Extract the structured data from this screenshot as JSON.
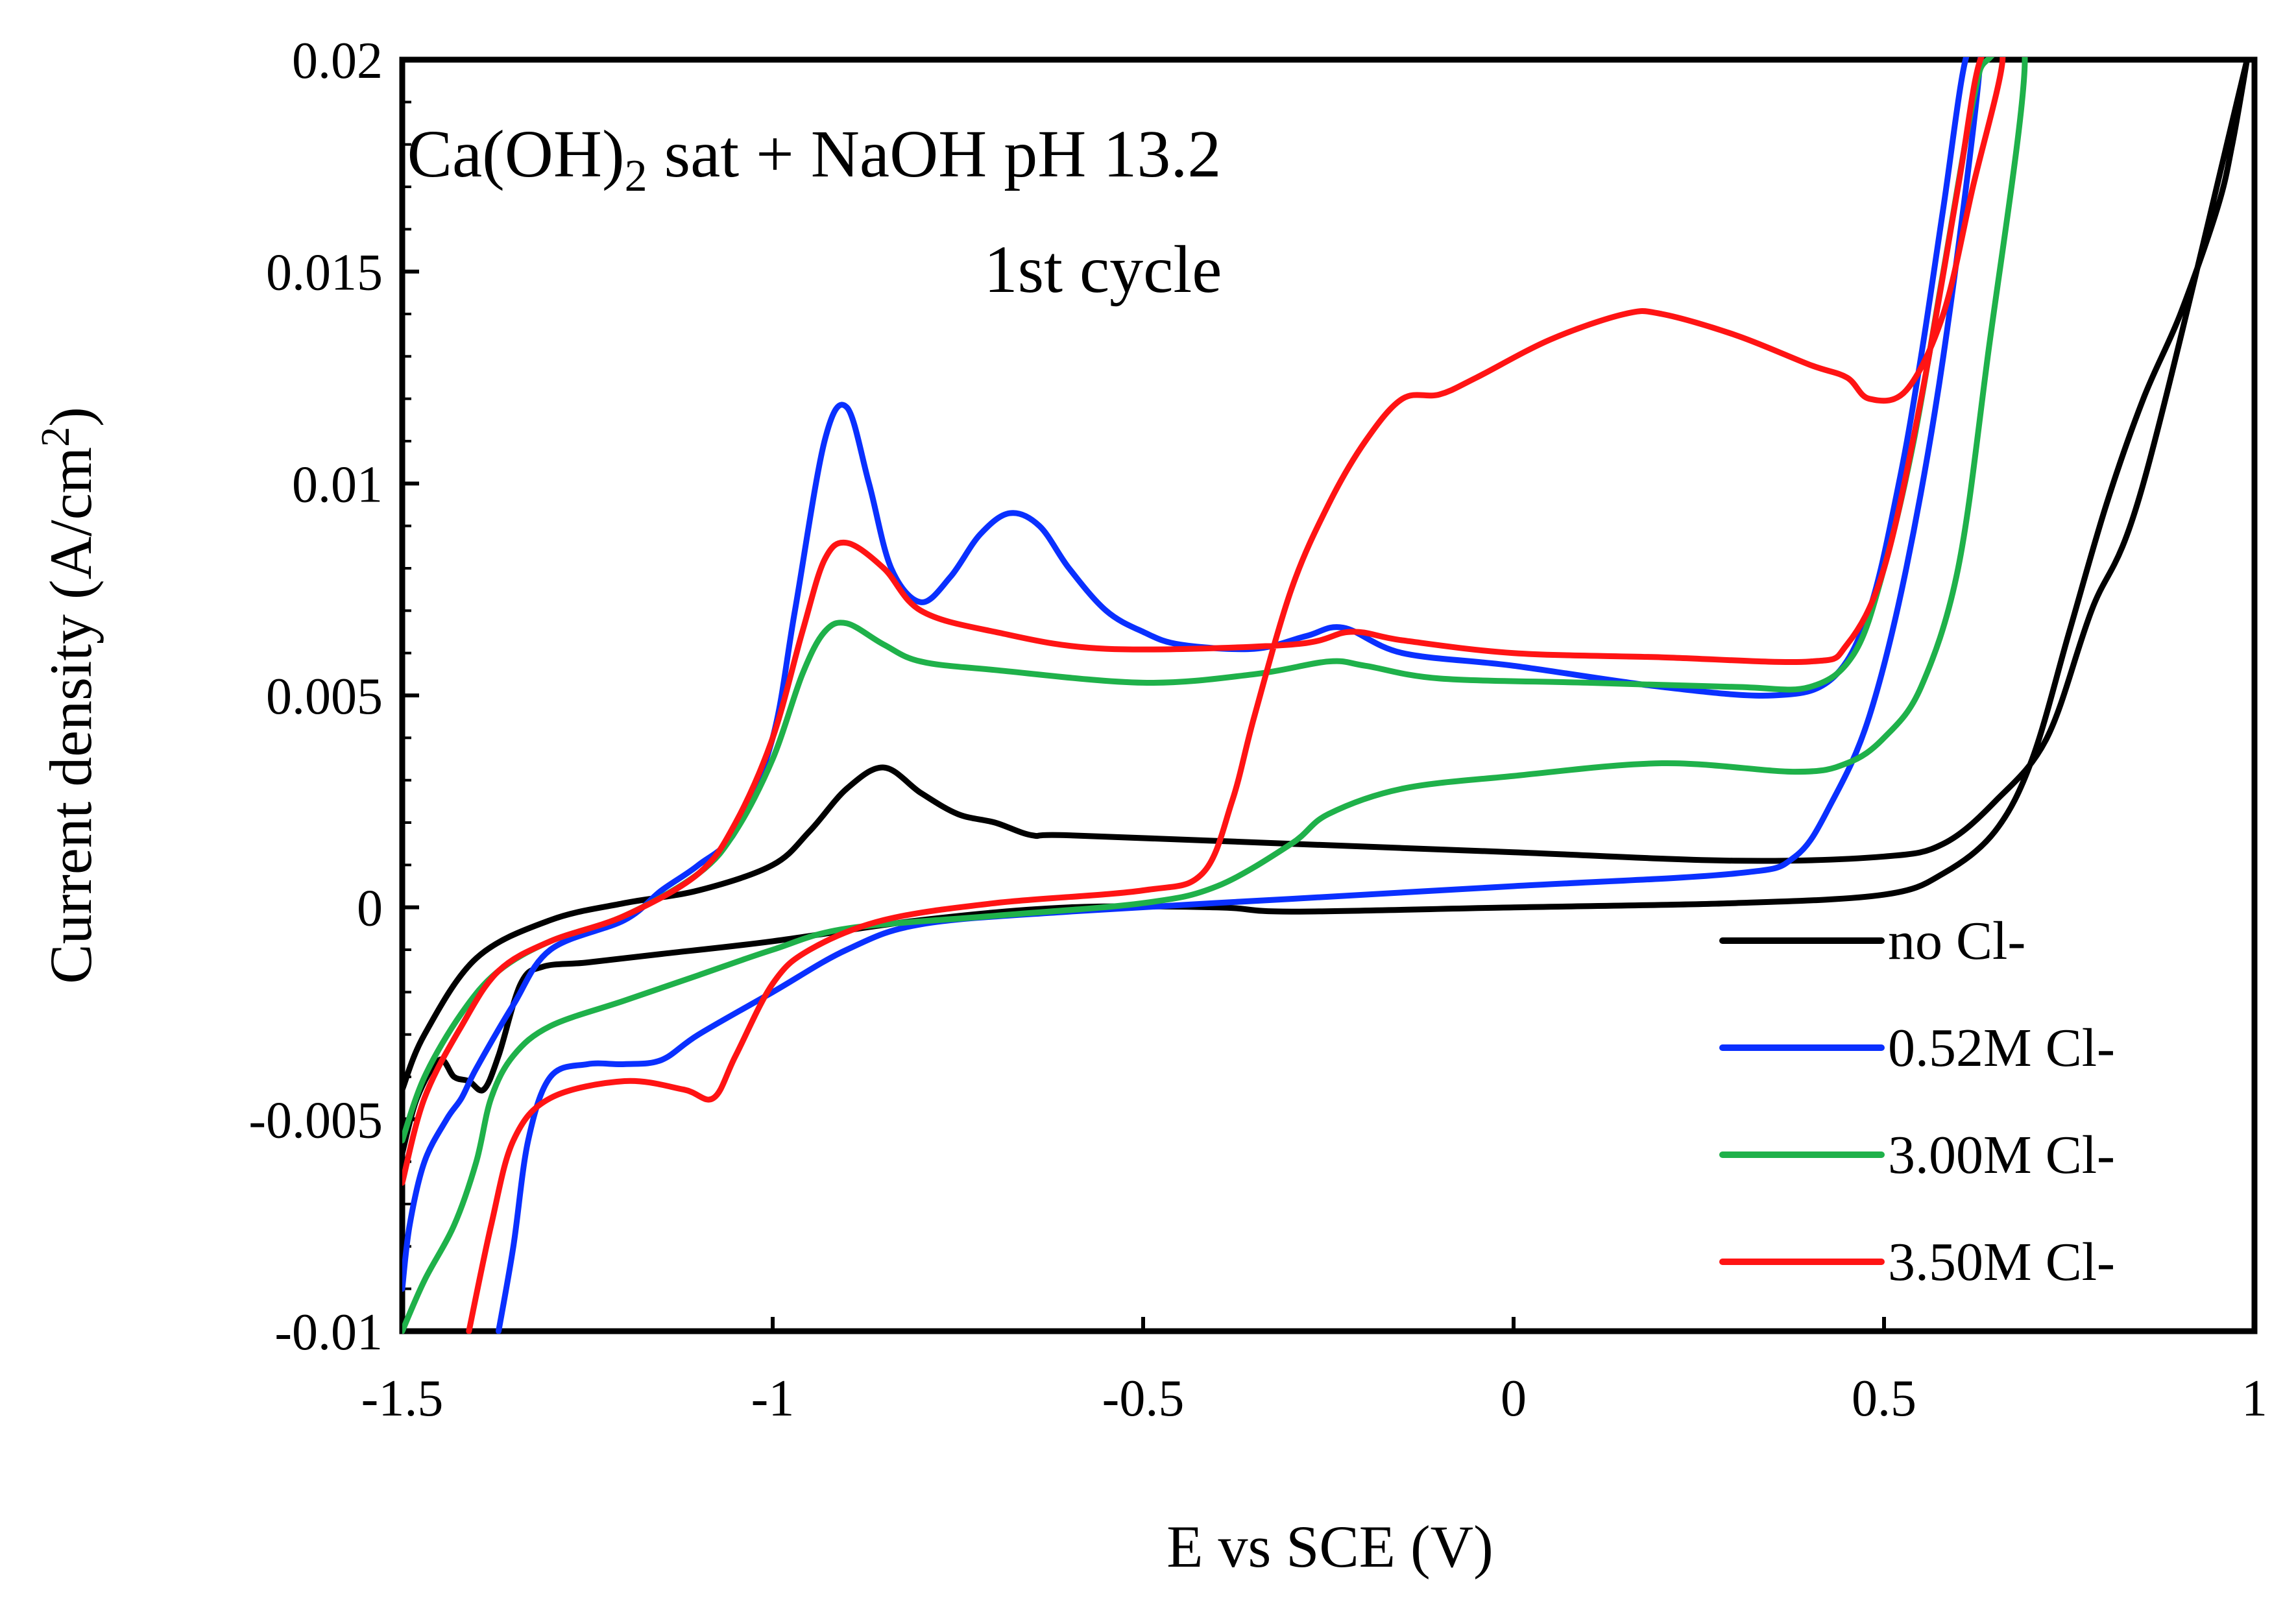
{
  "chart_data": {
    "type": "line",
    "title": {
      "line1_main": "Ca(OH)",
      "line1_sub": "2",
      "line1_rest": " sat + NaOH pH 13.2",
      "line2": "1st cycle"
    },
    "xlabel": "E vs SCE (V)",
    "ylabel": {
      "main": "Current density (A/cm",
      "sup": "2",
      "end": ")"
    },
    "xlim": [
      -1.5,
      1.0
    ],
    "ylim": [
      -0.01,
      0.02
    ],
    "x_ticks": [
      -1.5,
      -1.0,
      -0.5,
      0.0,
      0.5,
      1.0
    ],
    "x_tick_labels": [
      "-1.5",
      "-1",
      "-0.5",
      "0",
      "0.5",
      "1"
    ],
    "y_ticks": [
      -0.01,
      -0.005,
      0.0,
      0.005,
      0.01,
      0.015,
      0.02
    ],
    "y_tick_labels": [
      "-0.01",
      "-0.005",
      "0",
      "0.005",
      "0.01",
      "0.015",
      "0.02"
    ],
    "legend_position": "bottom-right",
    "series": [
      {
        "name": "no Cl-",
        "color": "#000000",
        "points": [
          [
            -1.5,
            -0.0058
          ],
          [
            -1.48,
            -0.0045
          ],
          [
            -1.45,
            -0.0036
          ],
          [
            -1.43,
            -0.004
          ],
          [
            -1.41,
            -0.0041
          ],
          [
            -1.39,
            -0.0043
          ],
          [
            -1.37,
            -0.0035
          ],
          [
            -1.34,
            -0.0018
          ],
          [
            -1.31,
            -0.0014
          ],
          [
            -1.25,
            -0.0013
          ],
          [
            -1.15,
            -0.0011
          ],
          [
            -1.0,
            -0.0008
          ],
          [
            -0.8,
            -0.0003
          ],
          [
            -0.6,
            0.0
          ],
          [
            -0.4,
            0.0
          ],
          [
            -0.3,
            -0.0001
          ],
          [
            0.0,
            0.0
          ],
          [
            0.3,
            0.0001
          ],
          [
            0.5,
            0.0003
          ],
          [
            0.58,
            0.0008
          ],
          [
            0.65,
            0.0018
          ],
          [
            0.7,
            0.0035
          ],
          [
            0.75,
            0.0065
          ],
          [
            0.8,
            0.0095
          ],
          [
            0.85,
            0.012
          ],
          [
            0.9,
            0.014
          ],
          [
            0.95,
            0.0165
          ],
          [
            0.97,
            0.018
          ],
          [
            0.99,
            0.02
          ],
          [
            0.99,
            0.02
          ],
          [
            0.85,
            0.01
          ],
          [
            0.78,
            0.007
          ],
          [
            0.72,
            0.004
          ],
          [
            0.65,
            0.0025
          ],
          [
            0.58,
            0.0015
          ],
          [
            0.5,
            0.0012
          ],
          [
            0.3,
            0.0011
          ],
          [
            0.0,
            0.0013
          ],
          [
            -0.3,
            0.0015
          ],
          [
            -0.6,
            0.0017
          ],
          [
            -0.65,
            0.0017
          ],
          [
            -0.7,
            0.002
          ],
          [
            -0.75,
            0.0022
          ],
          [
            -0.8,
            0.0027
          ],
          [
            -0.85,
            0.0033
          ],
          [
            -0.9,
            0.0028
          ],
          [
            -0.95,
            0.0018
          ],
          [
            -1.0,
            0.001
          ],
          [
            -1.1,
            0.0004
          ],
          [
            -1.2,
            0.0001
          ],
          [
            -1.3,
            -0.0003
          ],
          [
            -1.4,
            -0.0012
          ],
          [
            -1.47,
            -0.003
          ],
          [
            -1.5,
            -0.0043
          ]
        ]
      },
      {
        "name": "0.52M Cl-",
        "color": "#0a30ff",
        "points": [
          [
            -1.5,
            -0.009
          ],
          [
            -1.49,
            -0.0075
          ],
          [
            -1.47,
            -0.006
          ],
          [
            -1.44,
            -0.005
          ],
          [
            -1.42,
            -0.0045
          ],
          [
            -1.4,
            -0.0038
          ],
          [
            -1.35,
            -0.0023
          ],
          [
            -1.3,
            -0.001
          ],
          [
            -1.2,
            -0.0003
          ],
          [
            -1.15,
            0.0004
          ],
          [
            -1.1,
            0.001
          ],
          [
            -1.05,
            0.0018
          ],
          [
            -1.0,
            0.004
          ],
          [
            -0.97,
            0.007
          ],
          [
            -0.93,
            0.011
          ],
          [
            -0.9,
            0.0118
          ],
          [
            -0.87,
            0.01
          ],
          [
            -0.84,
            0.008
          ],
          [
            -0.8,
            0.0072
          ],
          [
            -0.76,
            0.0078
          ],
          [
            -0.72,
            0.0088
          ],
          [
            -0.68,
            0.0093
          ],
          [
            -0.64,
            0.009
          ],
          [
            -0.6,
            0.008
          ],
          [
            -0.55,
            0.007
          ],
          [
            -0.5,
            0.0065
          ],
          [
            -0.45,
            0.0062
          ],
          [
            -0.35,
            0.0061
          ],
          [
            -0.28,
            0.0064
          ],
          [
            -0.23,
            0.0066
          ],
          [
            -0.15,
            0.006
          ],
          [
            0.0,
            0.0057
          ],
          [
            0.2,
            0.0052
          ],
          [
            0.35,
            0.005
          ],
          [
            0.43,
            0.0054
          ],
          [
            0.48,
            0.007
          ],
          [
            0.52,
            0.01
          ],
          [
            0.55,
            0.013
          ],
          [
            0.58,
            0.0165
          ],
          [
            0.61,
            0.02
          ],
          [
            0.63,
            0.02
          ],
          [
            0.58,
            0.013
          ],
          [
            0.53,
            0.008
          ],
          [
            0.48,
            0.0045
          ],
          [
            0.43,
            0.0025
          ],
          [
            0.38,
            0.0012
          ],
          [
            0.3,
            0.0008
          ],
          [
            0.0,
            0.0005
          ],
          [
            -0.3,
            0.0002
          ],
          [
            -0.6,
            -0.0001
          ],
          [
            -0.8,
            -0.0004
          ],
          [
            -0.9,
            -0.001
          ],
          [
            -1.0,
            -0.002
          ],
          [
            -1.1,
            -0.003
          ],
          [
            -1.15,
            -0.0036
          ],
          [
            -1.2,
            -0.0037
          ],
          [
            -1.25,
            -0.0037
          ],
          [
            -1.3,
            -0.004
          ],
          [
            -1.33,
            -0.0055
          ],
          [
            -1.35,
            -0.008
          ],
          [
            -1.37,
            -0.01
          ]
        ]
      },
      {
        "name": "3.00M Cl-",
        "color": "#1fb14a",
        "points": [
          [
            -1.5,
            -0.0055
          ],
          [
            -1.47,
            -0.004
          ],
          [
            -1.42,
            -0.0025
          ],
          [
            -1.37,
            -0.0015
          ],
          [
            -1.3,
            -0.0008
          ],
          [
            -1.2,
            -0.0002
          ],
          [
            -1.1,
            0.0008
          ],
          [
            -1.05,
            0.0018
          ],
          [
            -1.0,
            0.0035
          ],
          [
            -0.96,
            0.0055
          ],
          [
            -0.93,
            0.0065
          ],
          [
            -0.9,
            0.0067
          ],
          [
            -0.85,
            0.0062
          ],
          [
            -0.8,
            0.0058
          ],
          [
            -0.7,
            0.0056
          ],
          [
            -0.5,
            0.0053
          ],
          [
            -0.35,
            0.0055
          ],
          [
            -0.25,
            0.0058
          ],
          [
            -0.2,
            0.0057
          ],
          [
            -0.1,
            0.0054
          ],
          [
            0.1,
            0.0053
          ],
          [
            0.3,
            0.0052
          ],
          [
            0.4,
            0.0052
          ],
          [
            0.46,
            0.006
          ],
          [
            0.5,
            0.008
          ],
          [
            0.54,
            0.011
          ],
          [
            0.58,
            0.015
          ],
          [
            0.62,
            0.019
          ],
          [
            0.64,
            0.02
          ],
          [
            0.69,
            0.02
          ],
          [
            0.64,
            0.013
          ],
          [
            0.6,
            0.008
          ],
          [
            0.55,
            0.0052
          ],
          [
            0.5,
            0.004
          ],
          [
            0.45,
            0.0034
          ],
          [
            0.38,
            0.0032
          ],
          [
            0.2,
            0.0034
          ],
          [
            0.0,
            0.0031
          ],
          [
            -0.15,
            0.0028
          ],
          [
            -0.25,
            0.0022
          ],
          [
            -0.3,
            0.0015
          ],
          [
            -0.4,
            0.0005
          ],
          [
            -0.5,
            0.0001
          ],
          [
            -0.7,
            -0.0002
          ],
          [
            -0.9,
            -0.0005
          ],
          [
            -1.0,
            -0.001
          ],
          [
            -1.1,
            -0.0016
          ],
          [
            -1.2,
            -0.0022
          ],
          [
            -1.3,
            -0.0028
          ],
          [
            -1.35,
            -0.0035
          ],
          [
            -1.38,
            -0.0045
          ],
          [
            -1.4,
            -0.006
          ],
          [
            -1.43,
            -0.0075
          ],
          [
            -1.47,
            -0.0088
          ],
          [
            -1.5,
            -0.01
          ]
        ]
      },
      {
        "name": "3.50M Cl-",
        "color": "#ff1414",
        "points": [
          [
            -1.5,
            -0.0065
          ],
          [
            -1.47,
            -0.0045
          ],
          [
            -1.42,
            -0.0028
          ],
          [
            -1.37,
            -0.0015
          ],
          [
            -1.3,
            -0.0008
          ],
          [
            -1.2,
            -0.0002
          ],
          [
            -1.1,
            0.0008
          ],
          [
            -1.05,
            0.002
          ],
          [
            -1.0,
            0.004
          ],
          [
            -0.96,
            0.0065
          ],
          [
            -0.93,
            0.0082
          ],
          [
            -0.9,
            0.0086
          ],
          [
            -0.85,
            0.008
          ],
          [
            -0.8,
            0.007
          ],
          [
            -0.7,
            0.0065
          ],
          [
            -0.55,
            0.0061
          ],
          [
            -0.3,
            0.0062
          ],
          [
            -0.22,
            0.0065
          ],
          [
            -0.15,
            0.0063
          ],
          [
            0.0,
            0.006
          ],
          [
            0.2,
            0.0059
          ],
          [
            0.4,
            0.0058
          ],
          [
            0.45,
            0.0062
          ],
          [
            0.5,
            0.008
          ],
          [
            0.55,
            0.012
          ],
          [
            0.6,
            0.017
          ],
          [
            0.63,
            0.02
          ],
          [
            0.66,
            0.02
          ],
          [
            0.62,
            0.017
          ],
          [
            0.58,
            0.014
          ],
          [
            0.53,
            0.0122
          ],
          [
            0.48,
            0.012
          ],
          [
            0.45,
            0.0125
          ],
          [
            0.4,
            0.0128
          ],
          [
            0.3,
            0.0135
          ],
          [
            0.2,
            0.014
          ],
          [
            0.15,
            0.014
          ],
          [
            0.05,
            0.0134
          ],
          [
            -0.05,
            0.0125
          ],
          [
            -0.1,
            0.0121
          ],
          [
            -0.15,
            0.012
          ],
          [
            -0.2,
            0.011
          ],
          [
            -0.25,
            0.0095
          ],
          [
            -0.3,
            0.0075
          ],
          [
            -0.35,
            0.0045
          ],
          [
            -0.38,
            0.0025
          ],
          [
            -0.42,
            0.0008
          ],
          [
            -0.5,
            0.0004
          ],
          [
            -0.7,
            0.0001
          ],
          [
            -0.85,
            -0.0003
          ],
          [
            -0.95,
            -0.001
          ],
          [
            -1.0,
            -0.0018
          ],
          [
            -1.05,
            -0.0035
          ],
          [
            -1.08,
            -0.0045
          ],
          [
            -1.12,
            -0.0043
          ],
          [
            -1.2,
            -0.0041
          ],
          [
            -1.3,
            -0.0045
          ],
          [
            -1.35,
            -0.0055
          ],
          [
            -1.38,
            -0.0075
          ],
          [
            -1.41,
            -0.01
          ]
        ]
      }
    ]
  }
}
